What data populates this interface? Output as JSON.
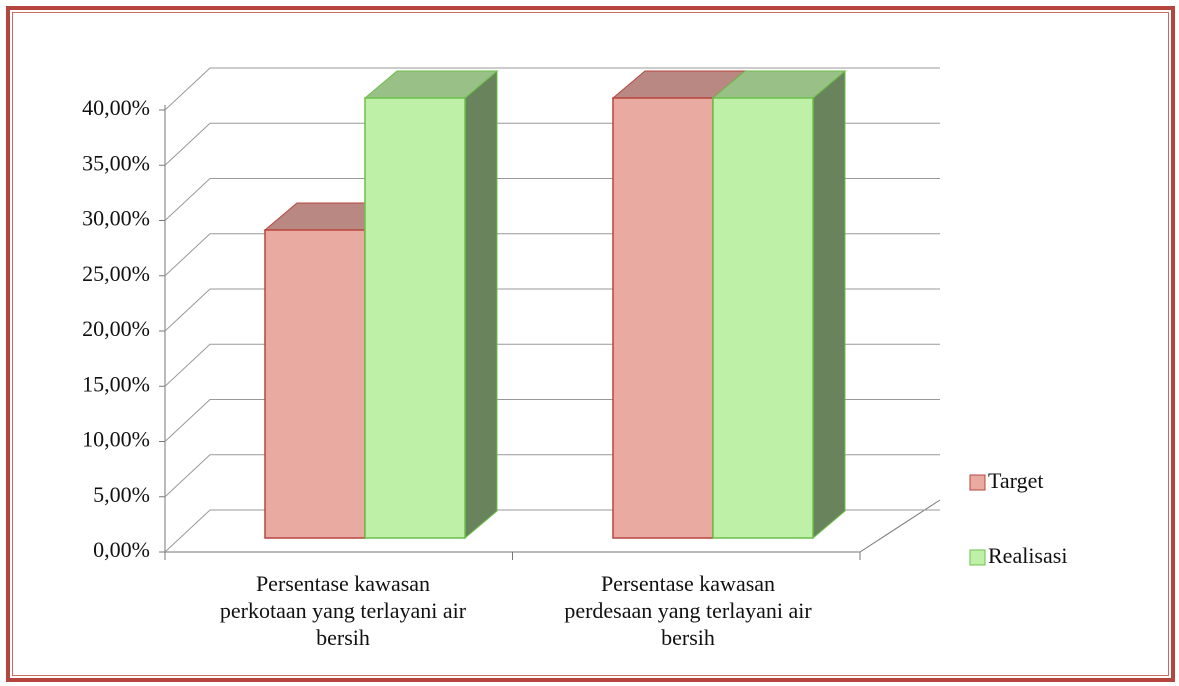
{
  "chart_data": {
    "type": "bar3d",
    "categories": [
      "Persentase kawasan perkotaan yang terlayani air bersih",
      "Persentase kawasan perdesaan yang terlayani air bersih"
    ],
    "series": [
      {
        "name": "Target",
        "color": "#e9aaa2",
        "values": [
          28,
          40
        ]
      },
      {
        "name": "Realisasi",
        "color": "#bff0a8",
        "values": [
          40,
          40
        ]
      }
    ],
    "ylim": [
      0,
      40
    ],
    "yticks": [
      {
        "value": 0,
        "label": "0,00%"
      },
      {
        "value": 5,
        "label": "5,00%"
      },
      {
        "value": 10,
        "label": "10,00%"
      },
      {
        "value": 15,
        "label": "15,00%"
      },
      {
        "value": 20,
        "label": "20,00%"
      },
      {
        "value": 25,
        "label": "25,00%"
      },
      {
        "value": 30,
        "label": "30,00%"
      },
      {
        "value": 35,
        "label": "35,00%"
      },
      {
        "value": 40,
        "label": "40,00%"
      }
    ],
    "grid": true,
    "legend": "right"
  }
}
